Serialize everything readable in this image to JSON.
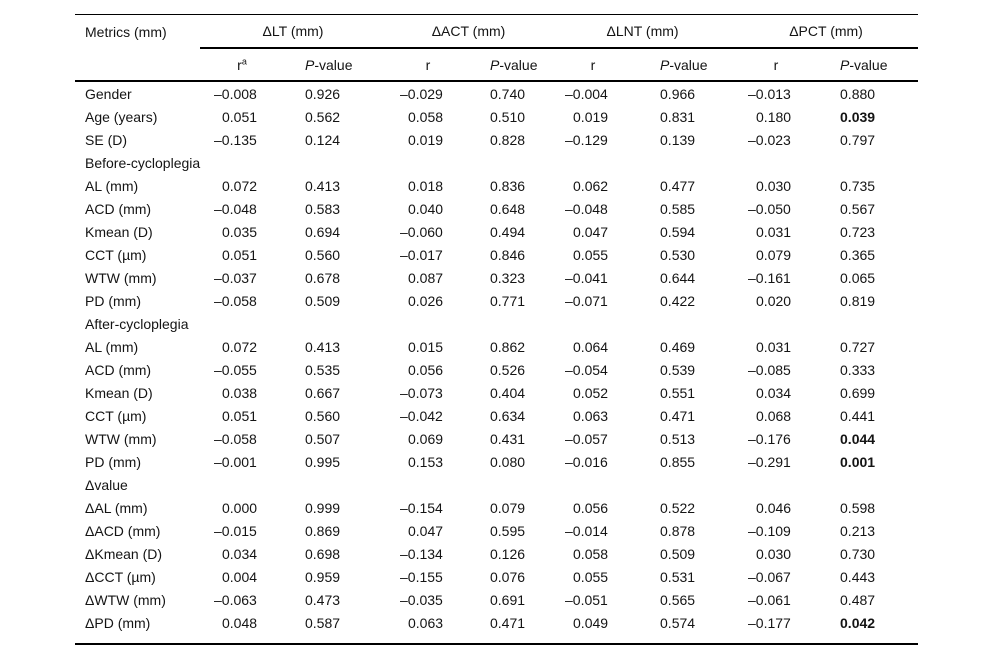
{
  "table": {
    "stub_header": "Metrics (mm)",
    "group_headers": [
      {
        "label": "ΔLT (mm)"
      },
      {
        "label": "ΔACT (mm)"
      },
      {
        "label": "ΔLNT (mm)"
      },
      {
        "label": "ΔPCT (mm)"
      }
    ],
    "sub_headers": [
      {
        "label": "r",
        "sup": "a"
      },
      {
        "label": "P-value",
        "italic_first": true
      },
      {
        "label": "r"
      },
      {
        "label": "P-value",
        "italic_first": true
      },
      {
        "label": "r"
      },
      {
        "label": "P-value",
        "italic_first": true
      },
      {
        "label": "r"
      },
      {
        "label": "P-value",
        "italic_first": true
      }
    ],
    "rows": [
      {
        "label": "Gender",
        "values": [
          "–0.008",
          "0.926",
          "–0.029",
          "0.740",
          "–0.004",
          "0.966",
          "–0.013",
          "0.880"
        ]
      },
      {
        "label": "Age (years)",
        "values": [
          "0.051",
          "0.562",
          "0.058",
          "0.510",
          "0.019",
          "0.831",
          "0.180",
          "0.039"
        ],
        "bold": [
          7
        ]
      },
      {
        "label": "SE (D)",
        "values": [
          "–0.135",
          "0.124",
          "0.019",
          "0.828",
          "–0.129",
          "0.139",
          "–0.023",
          "0.797"
        ]
      },
      {
        "label": "Before-cycloplegia",
        "section": true
      },
      {
        "label": "AL (mm)",
        "values": [
          "0.072",
          "0.413",
          "0.018",
          "0.836",
          "0.062",
          "0.477",
          "0.030",
          "0.735"
        ]
      },
      {
        "label": "ACD (mm)",
        "values": [
          "–0.048",
          "0.583",
          "0.040",
          "0.648",
          "–0.048",
          "0.585",
          "–0.050",
          "0.567"
        ]
      },
      {
        "label": "Kmean (D)",
        "values": [
          "0.035",
          "0.694",
          "–0.060",
          "0.494",
          "0.047",
          "0.594",
          "0.031",
          "0.723"
        ]
      },
      {
        "label": "CCT (µm)",
        "values": [
          "0.051",
          "0.560",
          "–0.017",
          "0.846",
          "0.055",
          "0.530",
          "0.079",
          "0.365"
        ]
      },
      {
        "label": "WTW (mm)",
        "values": [
          "–0.037",
          "0.678",
          "0.087",
          "0.323",
          "–0.041",
          "0.644",
          "–0.161",
          "0.065"
        ]
      },
      {
        "label": "PD (mm)",
        "values": [
          "–0.058",
          "0.509",
          "0.026",
          "0.771",
          "–0.071",
          "0.422",
          "0.020",
          "0.819"
        ]
      },
      {
        "label": "After-cycloplegia",
        "section": true
      },
      {
        "label": "AL (mm)",
        "values": [
          "0.072",
          "0.413",
          "0.015",
          "0.862",
          "0.064",
          "0.469",
          "0.031",
          "0.727"
        ]
      },
      {
        "label": "ACD (mm)",
        "values": [
          "–0.055",
          "0.535",
          "0.056",
          "0.526",
          "–0.054",
          "0.539",
          "–0.085",
          "0.333"
        ]
      },
      {
        "label": "Kmean (D)",
        "values": [
          "0.038",
          "0.667",
          "–0.073",
          "0.404",
          "0.052",
          "0.551",
          "0.034",
          "0.699"
        ]
      },
      {
        "label": "CCT (µm)",
        "values": [
          "0.051",
          "0.560",
          "–0.042",
          "0.634",
          "0.063",
          "0.471",
          "0.068",
          "0.441"
        ]
      },
      {
        "label": "WTW (mm)",
        "values": [
          "–0.058",
          "0.507",
          "0.069",
          "0.431",
          "–0.057",
          "0.513",
          "–0.176",
          "0.044"
        ],
        "bold": [
          7
        ]
      },
      {
        "label": "PD (mm)",
        "values": [
          "–0.001",
          "0.995",
          "0.153",
          "0.080",
          "–0.016",
          "0.855",
          "–0.291",
          "0.001"
        ],
        "bold": [
          7
        ]
      },
      {
        "label": "Δvalue",
        "section": true
      },
      {
        "label": "ΔAL (mm)",
        "values": [
          "0.000",
          "0.999",
          "–0.154",
          "0.079",
          "0.056",
          "0.522",
          "0.046",
          "0.598"
        ]
      },
      {
        "label": "ΔACD (mm)",
        "values": [
          "–0.015",
          "0.869",
          "0.047",
          "0.595",
          "–0.014",
          "0.878",
          "–0.109",
          "0.213"
        ]
      },
      {
        "label": "ΔKmean (D)",
        "values": [
          "0.034",
          "0.698",
          "–0.134",
          "0.126",
          "0.058",
          "0.509",
          "0.030",
          "0.730"
        ]
      },
      {
        "label": "ΔCCT (µm)",
        "values": [
          "0.004",
          "0.959",
          "–0.155",
          "0.076",
          "0.055",
          "0.531",
          "–0.067",
          "0.443"
        ]
      },
      {
        "label": "ΔWTW (mm)",
        "values": [
          "–0.063",
          "0.473",
          "–0.035",
          "0.691",
          "–0.051",
          "0.565",
          "–0.061",
          "0.487"
        ]
      },
      {
        "label": "ΔPD (mm)",
        "values": [
          "0.048",
          "0.587",
          "0.063",
          "0.471",
          "0.049",
          "0.574",
          "–0.177",
          "0.042"
        ],
        "bold": [
          7
        ]
      }
    ]
  }
}
